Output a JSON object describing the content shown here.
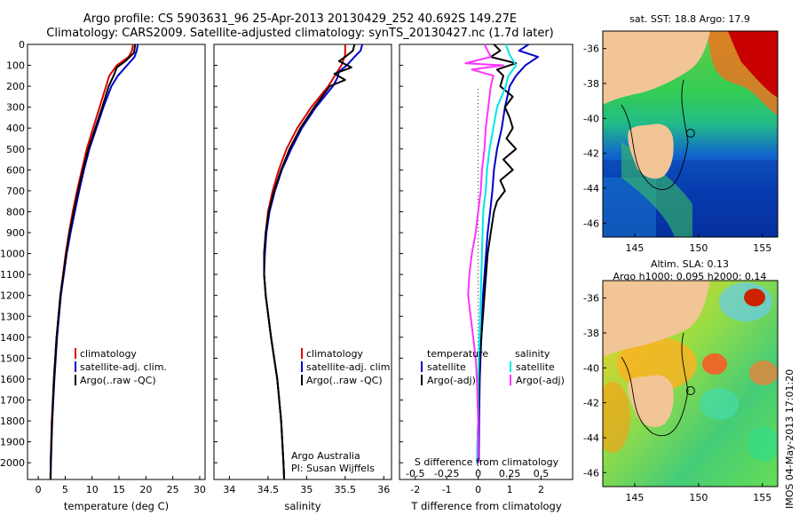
{
  "header": {
    "title_line1": "Argo profile: CS 5903631_96 25-Apr-2013 20130429_252 40.692S 149.27E",
    "title_line2": "Climatology: CARS2009. Satellite-adjusted climatology: synTS_20130427.nc (1.7d later)"
  },
  "chart_data": [
    {
      "id": "temperature",
      "type": "line",
      "xlabel": "temperature (deg C)",
      "xlim": [
        -2,
        31
      ],
      "xticks": [
        "0",
        "5",
        "10",
        "15",
        "20",
        "25",
        "30"
      ],
      "ylim": [
        0,
        2080
      ],
      "yticks": [
        "0",
        "100",
        "200",
        "300",
        "400",
        "500",
        "600",
        "700",
        "800",
        "900",
        "1000",
        "1100",
        "1200",
        "1300",
        "1400",
        "1500",
        "1600",
        "1700",
        "1800",
        "1900",
        "2000"
      ],
      "y_reversed": true,
      "legend": [
        "climatology",
        "satellite-adj. clim.",
        "Argo(..raw -QC)"
      ],
      "legend_colors": [
        "#dd0000",
        "#0000cc",
        "#000000"
      ],
      "series": [
        {
          "name": "climatology",
          "color": "#dd0000",
          "depth": [
            0,
            30,
            60,
            100,
            150,
            200,
            300,
            400,
            500,
            600,
            700,
            800,
            900,
            1000,
            1200,
            1400,
            1600,
            1800,
            2000,
            2080
          ],
          "values": [
            17.6,
            17.4,
            16.8,
            14.6,
            13.2,
            12.6,
            11.4,
            10.2,
            9.0,
            8.1,
            7.2,
            6.4,
            5.7,
            5.1,
            4.1,
            3.4,
            2.9,
            2.5,
            2.3,
            2.25
          ]
        },
        {
          "name": "satellite-adj. clim.",
          "color": "#0000cc",
          "depth": [
            0,
            30,
            60,
            100,
            150,
            200,
            300,
            400,
            500,
            600,
            700,
            800,
            900,
            1000,
            1200,
            1400,
            1600,
            1800,
            2000,
            2080
          ],
          "values": [
            18.5,
            18.3,
            17.9,
            16.5,
            14.8,
            13.6,
            12.1,
            10.8,
            9.5,
            8.5,
            7.6,
            6.8,
            6.0,
            5.3,
            4.2,
            3.5,
            3.0,
            2.6,
            2.35,
            2.3
          ]
        },
        {
          "name": "Argo(..raw -QC)",
          "color": "#000000",
          "depth": [
            0,
            40,
            80,
            110,
            150,
            200,
            300,
            400,
            500,
            600,
            700,
            800,
            900,
            1000,
            1200,
            1400,
            1600,
            1800,
            2000,
            2080
          ],
          "values": [
            18.0,
            17.8,
            16.2,
            14.6,
            14.0,
            13.1,
            11.9,
            10.6,
            9.3,
            8.3,
            7.4,
            6.6,
            5.8,
            5.2,
            4.1,
            3.4,
            2.9,
            2.55,
            2.3,
            2.28
          ]
        }
      ]
    },
    {
      "id": "salinity",
      "type": "line",
      "xlabel": "salinity",
      "xlim": [
        33.8,
        36.1
      ],
      "xticks": [
        "34",
        "34.5",
        "35",
        "35.5",
        "36"
      ],
      "ylim": [
        0,
        2080
      ],
      "y_reversed": true,
      "legend": [
        "climatology",
        "satellite-adj. clim.",
        "Argo(..raw -QC)"
      ],
      "legend_colors": [
        "#dd0000",
        "#0000cc",
        "#000000"
      ],
      "annotation": [
        "Argo Australia",
        "PI: Susan Wijffels"
      ],
      "series": [
        {
          "name": "climatology",
          "color": "#dd0000",
          "depth": [
            0,
            50,
            100,
            200,
            300,
            400,
            500,
            600,
            700,
            800,
            900,
            1000,
            1100,
            1200,
            1400,
            1600,
            1800,
            2000,
            2080
          ],
          "values": [
            35.5,
            35.5,
            35.45,
            35.28,
            35.06,
            34.88,
            34.74,
            34.64,
            34.56,
            34.5,
            34.47,
            34.45,
            34.45,
            34.47,
            34.54,
            34.62,
            34.67,
            34.7,
            34.71
          ]
        },
        {
          "name": "satellite-adj. clim.",
          "color": "#0000cc",
          "depth": [
            0,
            30,
            60,
            100,
            130,
            160,
            200,
            300,
            400,
            500,
            600,
            700,
            800,
            900,
            1000,
            1100,
            1200,
            1400,
            1600,
            1800,
            2000,
            2080
          ],
          "values": [
            35.72,
            35.7,
            35.62,
            35.52,
            35.42,
            35.4,
            35.34,
            35.12,
            34.94,
            34.8,
            34.68,
            34.59,
            34.52,
            34.48,
            34.46,
            34.45,
            34.47,
            34.54,
            34.62,
            34.67,
            34.7,
            34.71
          ]
        },
        {
          "name": "Argo(..raw -QC)",
          "color": "#000000",
          "depth": [
            0,
            30,
            60,
            80,
            110,
            140,
            170,
            200,
            300,
            400,
            500,
            600,
            700,
            800,
            900,
            1000,
            1100,
            1200,
            1400,
            1600,
            1800,
            2000,
            2080
          ],
          "values": [
            35.62,
            35.6,
            35.5,
            35.42,
            35.58,
            35.36,
            35.5,
            35.3,
            35.1,
            34.92,
            34.78,
            34.67,
            34.58,
            34.51,
            34.47,
            34.45,
            34.45,
            34.47,
            34.54,
            34.62,
            34.67,
            34.7,
            34.71
          ]
        }
      ]
    },
    {
      "id": "difference",
      "type": "line",
      "xlabel": "T difference from climatology",
      "xlabel_top": "S difference from climatology",
      "xlim": [
        -2.5,
        3.0
      ],
      "xticks": [
        "-2",
        "-1",
        "0",
        "1",
        "2"
      ],
      "xticks_top": [
        "-0.5",
        "-0.25",
        "0",
        "0.25",
        "0.5"
      ],
      "ylim": [
        0,
        2080
      ],
      "y_reversed": true,
      "legend_title_left": "temperature",
      "legend_title_right": "salinity",
      "legend": [
        "satellite",
        "Argo(-adj)",
        "satellite",
        "Argo(-adj)"
      ],
      "legend_colors": [
        "#0000cc",
        "#000000",
        "#00e5e5",
        "#ff33ff"
      ],
      "series": [
        {
          "name": "temperature satellite",
          "color": "#0000cc",
          "depth": [
            0,
            30,
            60,
            100,
            150,
            200,
            300,
            400,
            500,
            600,
            700,
            800,
            900,
            1000,
            1200,
            1400,
            1600,
            1800,
            2000
          ],
          "values": [
            1.6,
            1.3,
            1.9,
            1.5,
            1.2,
            1.0,
            0.85,
            0.75,
            0.6,
            0.5,
            0.45,
            0.38,
            0.3,
            0.25,
            0.15,
            0.1,
            0.05,
            0.03,
            0.02
          ]
        },
        {
          "name": "temperature Argo(-adj)",
          "color": "#000000",
          "depth": [
            0,
            30,
            60,
            90,
            120,
            150,
            200,
            250,
            300,
            350,
            400,
            450,
            500,
            550,
            600,
            650,
            700,
            750,
            800,
            900,
            1000,
            1100,
            1200,
            1300,
            1400,
            1500,
            1600,
            1700,
            1800,
            1900,
            2000
          ],
          "values": [
            0.5,
            0.7,
            0.4,
            1.2,
            0.6,
            0.8,
            0.7,
            1.1,
            0.85,
            1.0,
            1.1,
            0.9,
            1.2,
            0.8,
            1.1,
            0.7,
            0.85,
            0.6,
            0.5,
            0.4,
            0.3,
            0.25,
            0.2,
            0.15,
            0.1,
            0.05,
            0.03,
            0.02,
            0.0,
            -0.02,
            -0.03
          ]
        },
        {
          "name": "salinity satellite",
          "color": "#00e5e5",
          "depth": [
            0,
            50,
            100,
            150,
            200,
            300,
            400,
            500,
            600,
            700,
            800,
            1000,
            1200,
            1400,
            1600,
            1800,
            2000
          ],
          "values": [
            0.22,
            0.25,
            0.3,
            0.24,
            0.22,
            0.15,
            0.12,
            0.09,
            0.07,
            0.06,
            0.04,
            0.03,
            0.02,
            0.01,
            0.0,
            0.0,
            -0.01
          ]
        },
        {
          "name": "salinity Argo(-adj)",
          "color": "#ff33ff",
          "depth": [
            0,
            60,
            90,
            100,
            120,
            150,
            200,
            300,
            400,
            500,
            600,
            700,
            800,
            900,
            1000,
            1100,
            1200,
            1300,
            1400,
            1500,
            1600,
            1800,
            2000
          ],
          "values": [
            0.05,
            0.1,
            -0.1,
            0.2,
            -0.05,
            0.12,
            0.1,
            0.08,
            0.06,
            0.05,
            0.03,
            0.02,
            0.0,
            -0.02,
            -0.05,
            -0.07,
            -0.08,
            -0.06,
            -0.04,
            -0.02,
            -0.01,
            0.0,
            0.0
          ]
        }
      ]
    }
  ],
  "maps": {
    "sst": {
      "title": "sat. SST: 18.8 Argo: 17.9",
      "yticks": [
        "-36",
        "-38",
        "-40",
        "-42",
        "-44",
        "-46"
      ],
      "xticks": [
        "145",
        "150",
        "155"
      ]
    },
    "sla": {
      "title_line1": "Altim. SLA: 0.13",
      "title_line2": "Argo h1000: 0.095 h2000: 0.14",
      "yticks": [
        "-36",
        "-38",
        "-40",
        "-42",
        "-44",
        "-46"
      ],
      "xticks": [
        "145",
        "150",
        "155"
      ]
    }
  },
  "side_stamp": "IMOS 04-May-2013 17:01:20"
}
